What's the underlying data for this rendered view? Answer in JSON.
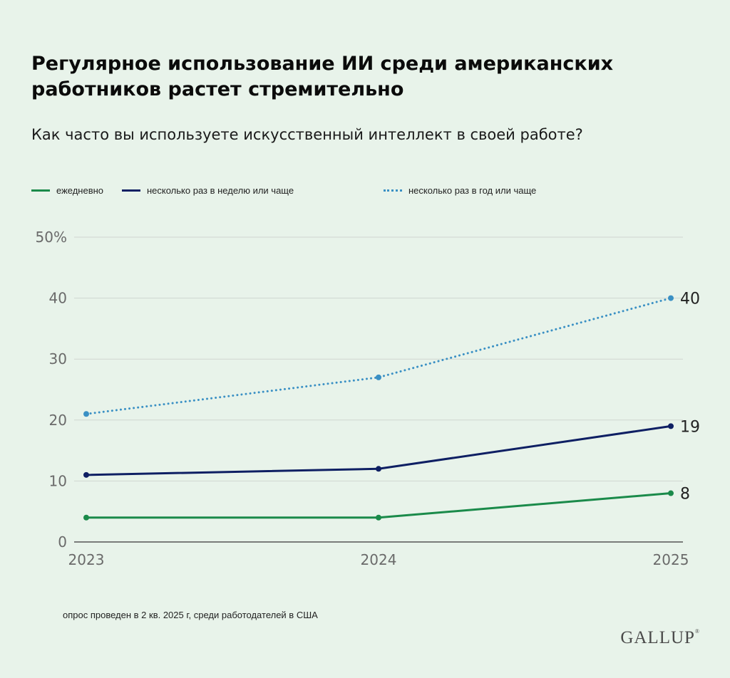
{
  "title": "Регулярное использование ИИ среди американских работников растет стремительно",
  "subtitle": "Как часто вы используете искусственный интеллект в своей работе?",
  "note": "опрос проведен в 2 кв. 2025 г, среди работодателей в США",
  "logo": "GALLUP",
  "colors": {
    "background": "#e8f3ea",
    "daily": "#1a8a4a",
    "weekly": "#0e1f63",
    "yearly": "#3a90c4",
    "grid": "#cfd6d0"
  },
  "chart_data": {
    "type": "line",
    "x": [
      "2023",
      "2024",
      "2025"
    ],
    "ylim": [
      0,
      50
    ],
    "yticks": [
      "0",
      "10",
      "20",
      "30",
      "40",
      "50%"
    ],
    "ytick_values": [
      0,
      10,
      20,
      30,
      40,
      50
    ],
    "grid": true,
    "legend_position": "top",
    "series": [
      {
        "name": "ежедневно",
        "values": [
          4,
          4,
          8
        ],
        "style": "solid",
        "end_label": "8"
      },
      {
        "name": "несколько раз в неделю или чаще",
        "values": [
          11,
          12,
          19
        ],
        "style": "solid",
        "end_label": "19"
      },
      {
        "name": "несколько раз в год или чаще",
        "values": [
          21,
          27,
          40
        ],
        "style": "dotted",
        "end_label": "40"
      }
    ]
  }
}
